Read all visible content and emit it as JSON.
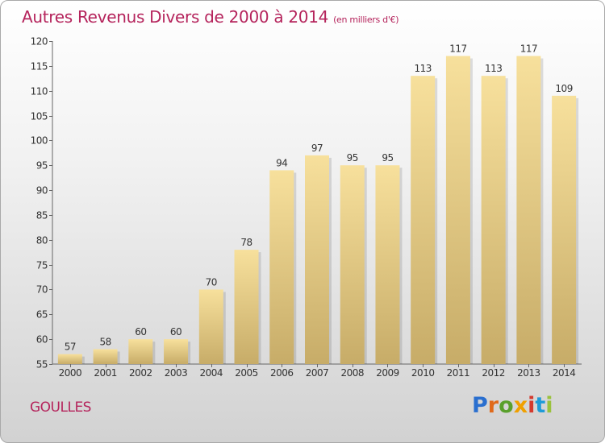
{
  "title": "Autres Revenus Divers de 2000 à 2014",
  "title_unit": "(en milliers d'€)",
  "place": "GOULLES",
  "logo_text": "Proxiti",
  "colors": {
    "title": "#b5245c",
    "bar_light": "#f7e09c",
    "bar_dark": "#c7ac68",
    "logo_letters": [
      "#2a6fcf",
      "#e06a1a",
      "#5aa02c",
      "#f0a000",
      "#d43a2e",
      "#1f9bd7",
      "#9ac23c"
    ]
  },
  "chart_data": {
    "type": "bar",
    "title": "Autres Revenus Divers de 2000 à 2014",
    "subtitle": "(en milliers d'€)",
    "categories": [
      "2000",
      "2001",
      "2002",
      "2003",
      "2004",
      "2005",
      "2006",
      "2007",
      "2008",
      "2009",
      "2010",
      "2011",
      "2012",
      "2013",
      "2014"
    ],
    "values": [
      57,
      58,
      60,
      60,
      70,
      78,
      94,
      97,
      95,
      95,
      113,
      117,
      113,
      117,
      109
    ],
    "ylim": [
      55,
      120
    ],
    "yticks": [
      55,
      60,
      65,
      70,
      75,
      80,
      85,
      90,
      95,
      100,
      105,
      110,
      115,
      120
    ],
    "grid": false,
    "data_labels": true
  }
}
